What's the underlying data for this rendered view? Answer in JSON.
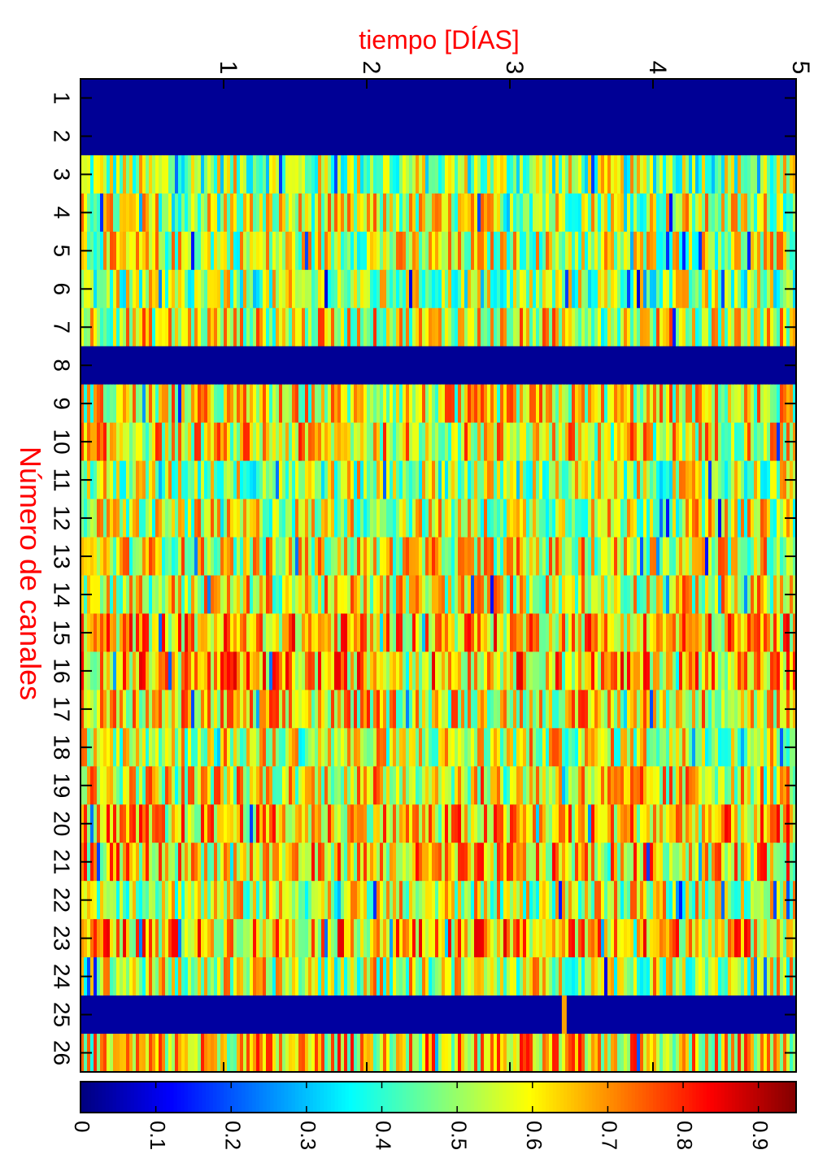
{
  "chart_data": {
    "type": "heatmap",
    "title": "",
    "xlabel": "tiempo [DÍAS]",
    "ylabel": "Número de canales",
    "xlim": [
      0,
      5
    ],
    "x_ticks": [
      "1",
      "2",
      "3",
      "4",
      "5"
    ],
    "y_categories": [
      "1",
      "2",
      "3",
      "4",
      "5",
      "6",
      "7",
      "8",
      "9",
      "10",
      "11",
      "12",
      "13",
      "14",
      "15",
      "16",
      "17",
      "18",
      "19",
      "20",
      "21",
      "22",
      "23",
      "24",
      "25",
      "26"
    ],
    "colormap": "jet",
    "clim": [
      0,
      0.95
    ],
    "colorbar_ticks": [
      "0",
      "0.1",
      "0.2",
      "0.3",
      "0.4",
      "0.5",
      "0.6",
      "0.7",
      "0.8",
      "0.9"
    ],
    "inactive_channels": [
      "1",
      "2",
      "8",
      "25"
    ],
    "channel_mean_levels": [
      0.02,
      0.02,
      0.5,
      0.55,
      0.55,
      0.5,
      0.58,
      0.02,
      0.58,
      0.6,
      0.52,
      0.55,
      0.58,
      0.58,
      0.65,
      0.65,
      0.6,
      0.56,
      0.6,
      0.63,
      0.62,
      0.55,
      0.65,
      0.55,
      0.03,
      0.62
    ],
    "annotations": [
      {
        "channel": "25",
        "time_days": 3.38,
        "value": 0.68
      }
    ],
    "label_color": "#ff0000",
    "orientation": "rotated-90-clockwise"
  }
}
